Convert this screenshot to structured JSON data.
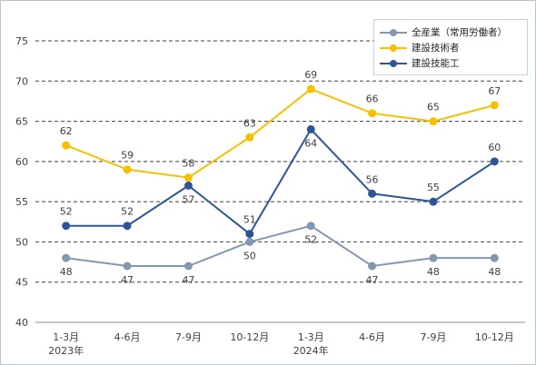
{
  "chart_data": {
    "type": "line",
    "title": "",
    "xlabel": "",
    "ylabel": "",
    "ylim": [
      40,
      75
    ],
    "yticks": [
      40,
      45,
      50,
      55,
      60,
      65,
      70,
      75
    ],
    "grid": true,
    "legend_position": "top-right",
    "categories": [
      {
        "line1": "1-3月",
        "line2": "2023年"
      },
      {
        "line1": "4-6月",
        "line2": ""
      },
      {
        "line1": "7-9月",
        "line2": ""
      },
      {
        "line1": "10-12月",
        "line2": ""
      },
      {
        "line1": "1-3月",
        "line2": "2024年"
      },
      {
        "line1": "4-6月",
        "line2": ""
      },
      {
        "line1": "7-9月",
        "line2": ""
      },
      {
        "line1": "10-12月",
        "line2": ""
      }
    ],
    "series": [
      {
        "name": "全産業（常用労働者）",
        "color": "#8497b0",
        "values": [
          48,
          47,
          47,
          50,
          52,
          47,
          48,
          48
        ],
        "label_position": "below"
      },
      {
        "name": "建設技術者",
        "color": "#f5c000",
        "values": [
          62,
          59,
          58,
          63,
          69,
          66,
          65,
          67
        ],
        "label_position": "above"
      },
      {
        "name": "建設技能工",
        "color": "#2f5597",
        "values": [
          52,
          52,
          57,
          51,
          64,
          56,
          55,
          60
        ],
        "label_position": "mixed"
      }
    ]
  }
}
